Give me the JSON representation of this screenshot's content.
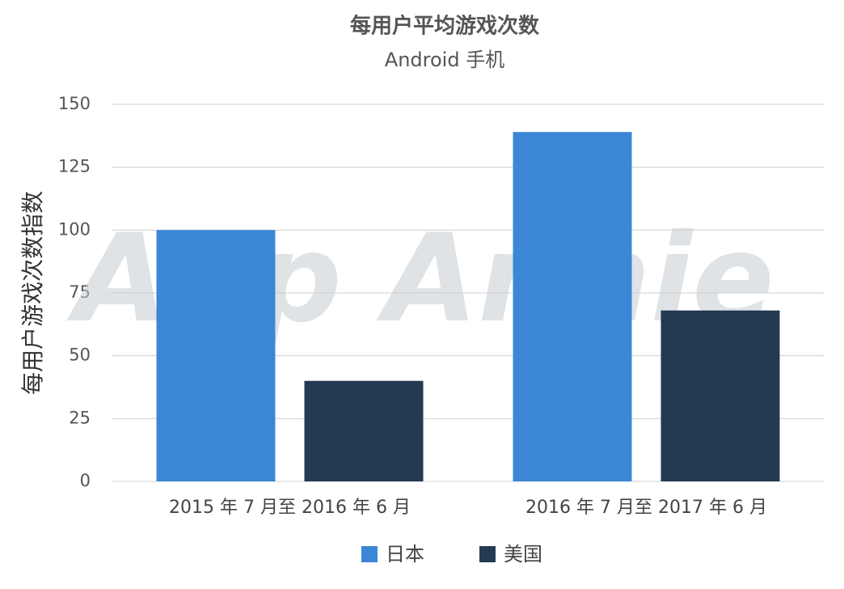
{
  "chart_data": {
    "type": "bar",
    "title": "每用户平均游戏次数",
    "subtitle": "Android 手机",
    "y_label": "每用户游戏次数指数",
    "watermark": "App Annie",
    "categories": [
      "2015 年 7 月至 2016 年 6 月",
      "2016 年 7 月至 2017 年 6 月"
    ],
    "series": [
      {
        "name": "日本",
        "color": "#3b87d6",
        "values": [
          100,
          139
        ]
      },
      {
        "name": "美国",
        "color": "#243a52",
        "values": [
          40,
          68
        ]
      }
    ],
    "ylim": [
      0,
      150
    ],
    "yticks": [
      0,
      25,
      50,
      75,
      100,
      125,
      150
    ],
    "grid": true,
    "legend": "bottom"
  }
}
